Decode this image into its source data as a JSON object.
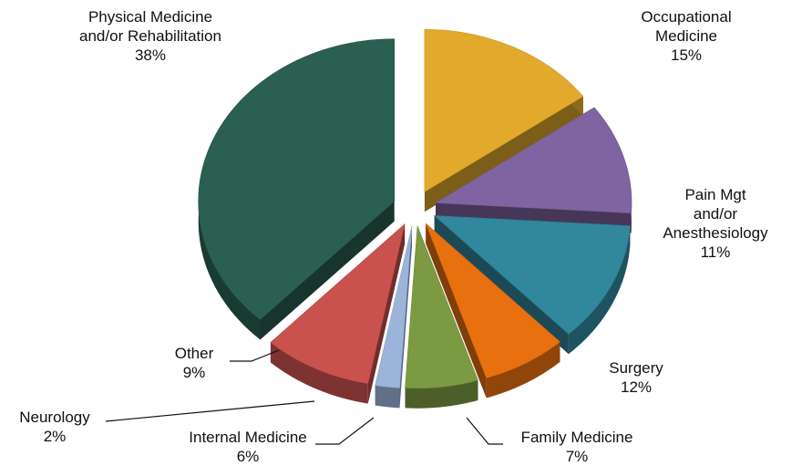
{
  "chart_data": {
    "type": "pie3d",
    "categories": [
      "Occupational Medicine",
      "Pain Mgt and/or\nAnesthesiology",
      "Surgery",
      "Family Medicine",
      "Internal Medicine",
      "Neurology",
      "Other",
      "Physical Medicine\nand/or Rehabilitation"
    ],
    "values": [
      15,
      11,
      12,
      7,
      6,
      2,
      9,
      38
    ],
    "value_labels": [
      "15%",
      "11%",
      "12%",
      "7%",
      "6%",
      "2%",
      "9%",
      "38%"
    ],
    "colors": [
      "#e2aa2c",
      "#8064a2",
      "#31879c",
      "#e8700e",
      "#7b9a42",
      "#9cb4da",
      "#c9524f",
      "#2a5f51"
    ],
    "exploded": true
  }
}
